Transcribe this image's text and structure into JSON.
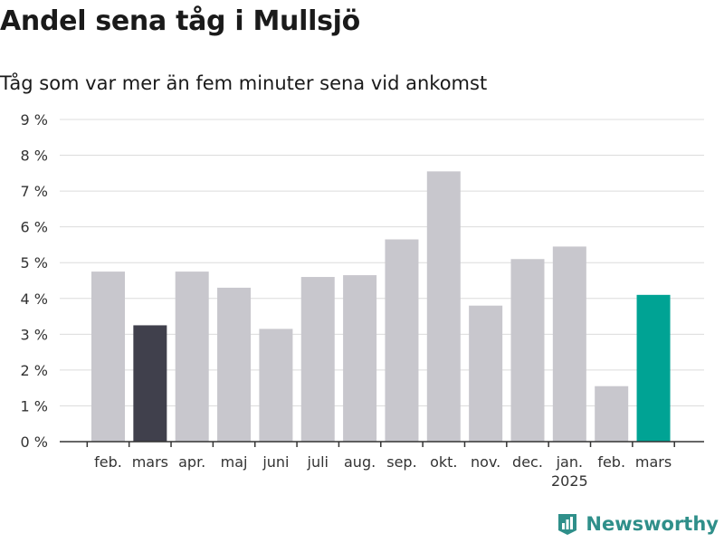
{
  "chart_data": {
    "type": "bar",
    "title": "Andel sena tåg i Mullsjö",
    "subtitle": "Tåg som var mer än fem minuter sena vid ankomst",
    "categories": [
      "feb.",
      "mars",
      "apr.",
      "maj",
      "juni",
      "juli",
      "aug.",
      "sep.",
      "okt.",
      "nov.",
      "dec.",
      "jan.",
      "feb.",
      "mars"
    ],
    "year_labels": [
      {
        "index": 11,
        "text": "2025"
      }
    ],
    "values": [
      4.75,
      3.25,
      4.75,
      4.3,
      3.15,
      4.6,
      4.65,
      5.65,
      7.55,
      3.8,
      5.1,
      5.45,
      1.55,
      4.1
    ],
    "bar_colors": [
      "#c8c7cd",
      "#40404c",
      "#c8c7cd",
      "#c8c7cd",
      "#c8c7cd",
      "#c8c7cd",
      "#c8c7cd",
      "#c8c7cd",
      "#c8c7cd",
      "#c8c7cd",
      "#c8c7cd",
      "#c8c7cd",
      "#c8c7cd",
      "#00a394"
    ],
    "ylim": [
      0,
      9
    ],
    "yticks": [
      0,
      1,
      2,
      3,
      4,
      5,
      6,
      7,
      8,
      9
    ],
    "ytick_suffix": " %",
    "grid": true,
    "xlabel": "",
    "ylabel": ""
  },
  "brand": {
    "name": "Newsworthy",
    "color": "#2f8f8a"
  },
  "icons": {
    "brand_logo": "bar-chart-logo-icon"
  }
}
